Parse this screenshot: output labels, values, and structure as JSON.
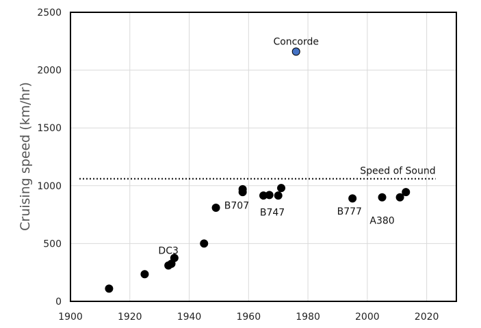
{
  "chart_data": {
    "type": "scatter",
    "title": "",
    "xlabel": "",
    "ylabel": "Cruising speed (km/hr)",
    "xlim": [
      1900,
      2030
    ],
    "ylim": [
      0,
      2500
    ],
    "x_ticks": [
      1900,
      1920,
      1940,
      1960,
      1980,
      2000,
      2020
    ],
    "y_ticks": [
      0,
      500,
      1000,
      1500,
      2000,
      2500
    ],
    "grid": true,
    "series": [
      {
        "color": "#000000",
        "points": [
          {
            "x": 1913,
            "y": 110
          },
          {
            "x": 1925,
            "y": 235
          },
          {
            "x": 1933,
            "y": 310
          },
          {
            "x": 1934,
            "y": 325
          },
          {
            "x": 1935,
            "y": 375
          },
          {
            "x": 1945,
            "y": 500
          },
          {
            "x": 1949,
            "y": 810
          },
          {
            "x": 1958,
            "y": 945
          },
          {
            "x": 1958,
            "y": 970
          },
          {
            "x": 1965,
            "y": 915
          },
          {
            "x": 1967,
            "y": 920
          },
          {
            "x": 1970,
            "y": 915
          },
          {
            "x": 1971,
            "y": 980
          },
          {
            "x": 1995,
            "y": 890
          },
          {
            "x": 2005,
            "y": 900
          },
          {
            "x": 2011,
            "y": 900
          },
          {
            "x": 2013,
            "y": 945
          }
        ]
      },
      {
        "color": "#4472C4",
        "points": [
          {
            "x": 1976,
            "y": 2160
          }
        ]
      }
    ],
    "reference_line": {
      "label": "Speed of Sound",
      "y": 1060,
      "x_range": [
        1903,
        2023
      ],
      "style": "dotted"
    },
    "annotations": [
      {
        "text": "Concorde",
        "x": 1976,
        "y": 2250
      },
      {
        "text": "DC3",
        "x": 1933,
        "y": 440
      },
      {
        "text": "B707",
        "x": 1956,
        "y": 830
      },
      {
        "text": "B747",
        "x": 1968,
        "y": 770
      },
      {
        "text": "B777",
        "x": 1994,
        "y": 780
      },
      {
        "text": "A380",
        "x": 2005,
        "y": 700
      }
    ]
  }
}
